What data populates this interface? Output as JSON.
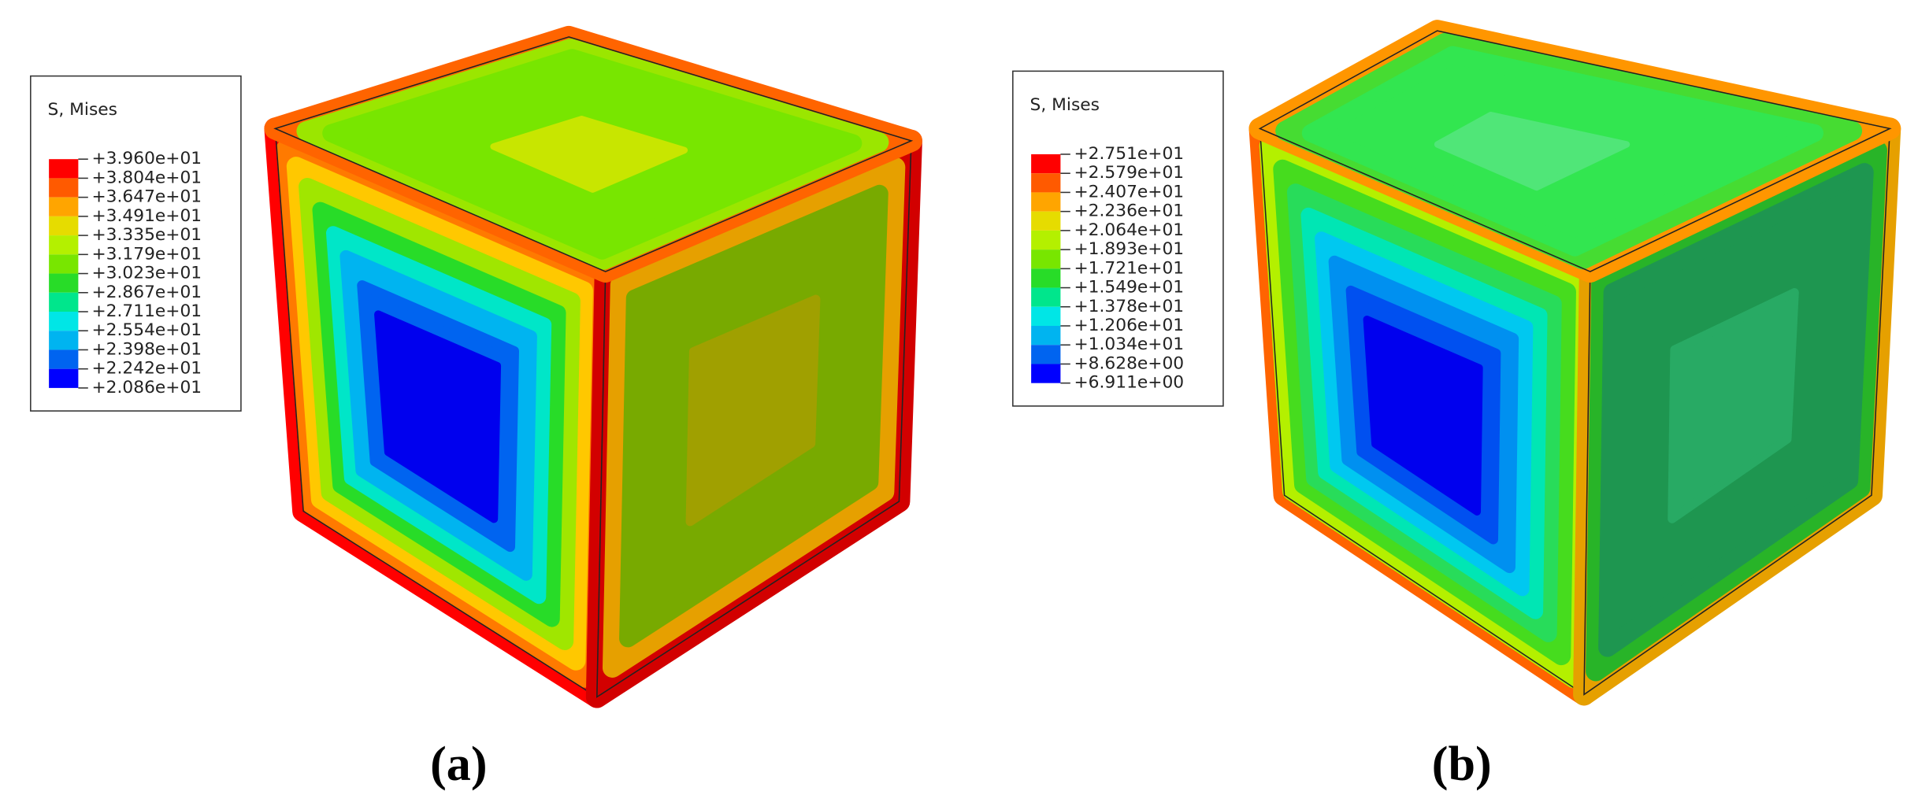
{
  "panels": [
    {
      "legend": {
        "title": "S, Mises",
        "levels": [
          "+3.960e+01",
          "+3.804e+01",
          "+3.647e+01",
          "+3.491e+01",
          "+3.335e+01",
          "+3.179e+01",
          "+3.023e+01",
          "+2.867e+01",
          "+2.711e+01",
          "+2.554e+01",
          "+2.398e+01",
          "+2.242e+01",
          "+2.086e+01"
        ]
      },
      "caption": "(a)"
    },
    {
      "legend": {
        "title": "S, Mises",
        "levels": [
          "+2.751e+01",
          "+2.579e+01",
          "+2.407e+01",
          "+2.236e+01",
          "+2.064e+01",
          "+1.893e+01",
          "+1.721e+01",
          "+1.549e+01",
          "+1.378e+01",
          "+1.206e+01",
          "+1.034e+01",
          "+8.628e+00",
          "+6.911e+00"
        ]
      },
      "caption": "(b)"
    }
  ]
}
